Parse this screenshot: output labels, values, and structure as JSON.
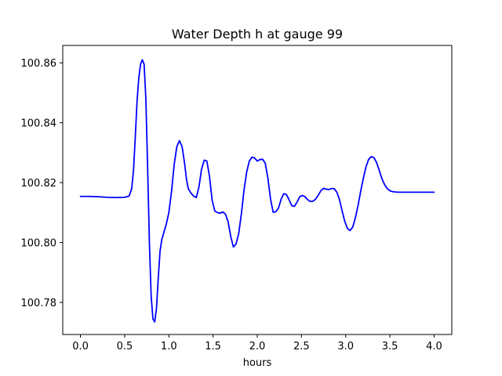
{
  "chart_data": {
    "type": "line",
    "title": "Water Depth h at gauge 99",
    "xlabel": "hours",
    "ylabel": "",
    "xlim": [
      -0.2,
      4.2
    ],
    "ylim": [
      100.7693,
      100.8658
    ],
    "xticks": [
      0.0,
      0.5,
      1.0,
      1.5,
      2.0,
      2.5,
      3.0,
      3.5,
      4.0
    ],
    "xtick_labels": [
      "0.0",
      "0.5",
      "1.0",
      "1.5",
      "2.0",
      "2.5",
      "3.0",
      "3.5",
      "4.0"
    ],
    "yticks": [
      100.78,
      100.8,
      100.82,
      100.84,
      100.86
    ],
    "ytick_labels": [
      "100.78",
      "100.80",
      "100.82",
      "100.84",
      "100.86"
    ],
    "grid": false,
    "legend": "none",
    "series": [
      {
        "color": "#0000ff",
        "x": [
          0.0,
          0.1,
          0.2,
          0.3,
          0.4,
          0.5,
          0.55,
          0.58,
          0.6,
          0.62,
          0.64,
          0.66,
          0.68,
          0.7,
          0.72,
          0.74,
          0.76,
          0.78,
          0.8,
          0.82,
          0.84,
          0.86,
          0.88,
          0.9,
          0.92,
          0.94,
          0.97,
          1.0,
          1.03,
          1.06,
          1.09,
          1.12,
          1.15,
          1.18,
          1.2,
          1.22,
          1.25,
          1.28,
          1.31,
          1.34,
          1.37,
          1.4,
          1.43,
          1.46,
          1.49,
          1.52,
          1.55,
          1.58,
          1.61,
          1.64,
          1.67,
          1.7,
          1.73,
          1.76,
          1.79,
          1.82,
          1.85,
          1.88,
          1.91,
          1.94,
          1.97,
          2.0,
          2.03,
          2.06,
          2.09,
          2.12,
          2.15,
          2.18,
          2.21,
          2.24,
          2.27,
          2.3,
          2.33,
          2.36,
          2.39,
          2.42,
          2.45,
          2.48,
          2.51,
          2.54,
          2.57,
          2.6,
          2.63,
          2.66,
          2.69,
          2.72,
          2.75,
          2.78,
          2.81,
          2.84,
          2.87,
          2.9,
          2.93,
          2.96,
          2.99,
          3.02,
          3.05,
          3.08,
          3.11,
          3.14,
          3.17,
          3.2,
          3.23,
          3.26,
          3.29,
          3.32,
          3.35,
          3.38,
          3.41,
          3.44,
          3.47,
          3.5,
          3.53,
          3.56,
          3.59,
          3.62,
          3.65,
          3.68,
          3.71,
          3.74,
          3.77,
          3.8,
          3.83,
          3.86,
          3.89,
          3.92,
          3.95,
          4.0
        ],
        "y": [
          100.8154,
          100.8154,
          100.8153,
          100.8151,
          100.815,
          100.8151,
          100.8155,
          100.818,
          100.824,
          100.835,
          100.847,
          100.855,
          100.8595,
          100.861,
          100.8595,
          100.848,
          100.825,
          100.8,
          100.782,
          100.7745,
          100.7735,
          100.778,
          100.788,
          100.797,
          100.801,
          100.803,
          100.806,
          100.81,
          100.817,
          100.826,
          100.832,
          100.834,
          100.832,
          100.826,
          100.821,
          100.818,
          100.8165,
          100.8155,
          100.815,
          100.8185,
          100.8245,
          100.8275,
          100.8272,
          100.822,
          100.814,
          100.8105,
          100.81,
          100.8098,
          100.8102,
          100.8095,
          100.807,
          100.802,
          100.7985,
          100.7995,
          100.803,
          100.8095,
          100.8175,
          100.8235,
          100.8272,
          100.8285,
          100.8282,
          100.8272,
          100.8277,
          100.8278,
          100.8265,
          100.8215,
          100.8145,
          100.8101,
          100.8103,
          100.8115,
          100.8145,
          100.8163,
          100.816,
          100.8143,
          100.8123,
          100.8121,
          100.8135,
          100.8153,
          100.8157,
          100.8153,
          100.8143,
          100.8137,
          100.8138,
          100.8145,
          100.8158,
          100.8173,
          100.8181,
          100.8178,
          100.8177,
          100.818,
          100.818,
          100.8168,
          100.8143,
          100.8105,
          100.807,
          100.8047,
          100.804,
          100.8052,
          100.8083,
          100.8124,
          100.8172,
          100.8215,
          100.8253,
          100.8278,
          100.8287,
          100.8283,
          100.8267,
          100.824,
          100.8213,
          100.8193,
          100.818,
          100.8173,
          100.817,
          100.8169,
          100.8168,
          100.8168,
          100.8168,
          100.8168,
          100.8168,
          100.8168,
          100.8168,
          100.8168,
          100.8168,
          100.8168,
          100.8168,
          100.8168,
          100.8168,
          100.8168
        ]
      }
    ]
  }
}
